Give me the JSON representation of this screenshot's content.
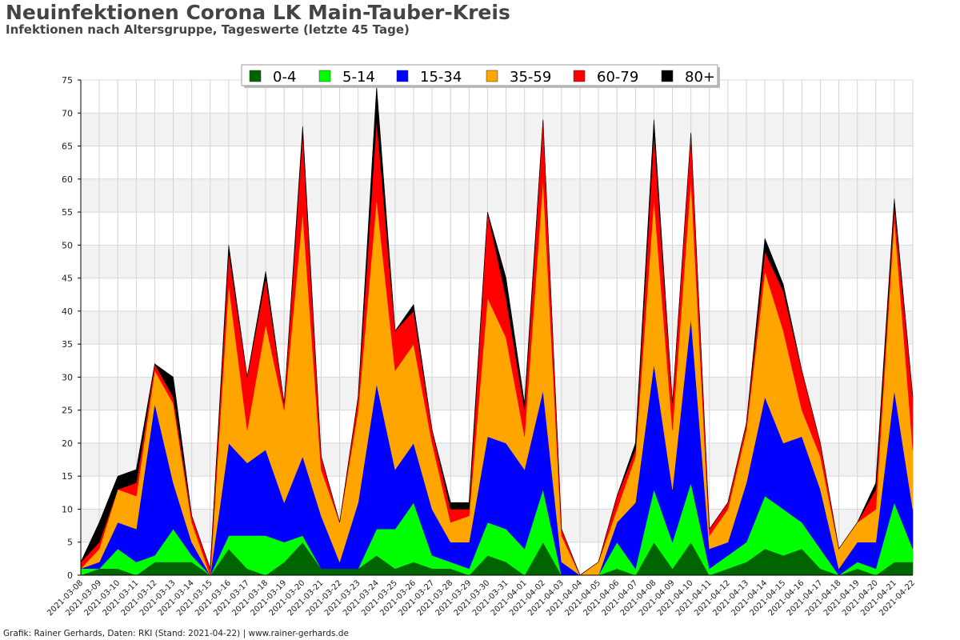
{
  "title": "Neuinfektionen Corona LK Main-Tauber-Kreis",
  "subtitle": "Infektionen nach Altersgruppe, Tageswerte (letzte 45 Tage)",
  "footer": "Grafik: Rainer Gerhards, Daten: RKI (Stand: 2021-04-22) | www.rainer-gerhards.de",
  "chart_data": {
    "type": "area",
    "stacked": true,
    "x": [
      "2021-03-08",
      "2021-03-09",
      "2021-03-10",
      "2021-03-11",
      "2021-03-12",
      "2021-03-13",
      "2021-03-14",
      "2021-03-15",
      "2021-03-16",
      "2021-03-17",
      "2021-03-18",
      "2021-03-19",
      "2021-03-20",
      "2021-03-21",
      "2021-03-22",
      "2021-03-23",
      "2021-03-24",
      "2021-03-25",
      "2021-03-26",
      "2021-03-27",
      "2021-03-28",
      "2021-03-29",
      "2021-03-30",
      "2021-03-31",
      "2021-04-01",
      "2021-04-02",
      "2021-04-03",
      "2021-04-04",
      "2021-04-05",
      "2021-04-06",
      "2021-04-07",
      "2021-04-08",
      "2021-04-09",
      "2021-04-10",
      "2021-04-11",
      "2021-04-12",
      "2021-04-13",
      "2021-04-14",
      "2021-04-15",
      "2021-04-16",
      "2021-04-17",
      "2021-04-18",
      "2021-04-19",
      "2021-04-20",
      "2021-04-21",
      "2021-04-22"
    ],
    "x_tick_labels": [
      "2021-03-08",
      "2021-03-09",
      "2021-03-10",
      "2021-03-11",
      "2021-03-12",
      "2021-03-13",
      "2021-03-14",
      "2021-03-15",
      "2021-03-16",
      "2021-03-17",
      "2021-03-18",
      "2021-03-19",
      "2021-03-20",
      "2021-03-21",
      "2021-03-22",
      "2021-03-23",
      "2021-03-24",
      "2021-03-25",
      "2021-03-26",
      "2021-03-27",
      "2021-03-28",
      "2021-03-29",
      "2021-03-30",
      "2021-03-31",
      "2021-04-01",
      "2021-04-02",
      "2021-04-03",
      "2021-04-04",
      "2021-04-05",
      "2021-04-06",
      "2021-04-07",
      "2021-04-08",
      "2021-04-09",
      "2021-04-10",
      "2021-04-11",
      "2021-04-12",
      "2021-04-13",
      "2021-04-14",
      "2021-04-15",
      "2021-04-16",
      "2021-04-17",
      "2021-04-18",
      "2021-04-19",
      "2021-04-20",
      "2021-04-21",
      "2021-04-22"
    ],
    "ylim": [
      0,
      75
    ],
    "y_ticks": [
      0,
      5,
      10,
      15,
      20,
      25,
      30,
      35,
      40,
      45,
      50,
      55,
      60,
      65,
      70,
      75
    ],
    "grid": true,
    "legend_position": "top-center",
    "series": [
      {
        "name": "0-4",
        "color": "#006400",
        "values": [
          0,
          1,
          1,
          0,
          2,
          2,
          2,
          0,
          4,
          1,
          0,
          2,
          5,
          1,
          1,
          1,
          3,
          1,
          2,
          1,
          1,
          0,
          3,
          2,
          0,
          5,
          0,
          0,
          0,
          1,
          0,
          5,
          1,
          5,
          0,
          1,
          2,
          4,
          3,
          4,
          1,
          0,
          1,
          0,
          2,
          2
        ]
      },
      {
        "name": "5-14",
        "color": "#00ff00",
        "values": [
          1,
          0,
          3,
          2,
          1,
          5,
          1,
          0,
          2,
          5,
          6,
          3,
          1,
          0,
          0,
          0,
          4,
          6,
          9,
          2,
          1,
          1,
          5,
          5,
          4,
          8,
          0,
          0,
          0,
          4,
          1,
          8,
          4,
          9,
          1,
          2,
          3,
          8,
          7,
          4,
          3,
          0,
          1,
          1,
          9,
          2
        ]
      },
      {
        "name": "15-34",
        "color": "#0000ff",
        "values": [
          0,
          1,
          4,
          5,
          23,
          7,
          2,
          0,
          14,
          11,
          13,
          6,
          12,
          8,
          1,
          10,
          22,
          9,
          9,
          7,
          3,
          4,
          13,
          13,
          12,
          15,
          2,
          0,
          0,
          3,
          10,
          19,
          8,
          25,
          3,
          2,
          9,
          15,
          10,
          13,
          9,
          1,
          3,
          4,
          17,
          6
        ]
      },
      {
        "name": "35-59",
        "color": "#ffa500",
        "values": [
          0,
          2,
          5,
          5,
          5,
          12,
          3,
          0,
          24,
          5,
          19,
          14,
          37,
          7,
          6,
          14,
          28,
          15,
          15,
          10,
          3,
          4,
          21,
          16,
          5,
          32,
          4,
          0,
          2,
          2,
          7,
          25,
          9,
          21,
          2,
          5,
          8,
          19,
          17,
          4,
          5,
          3,
          3,
          5,
          26,
          9
        ]
      },
      {
        "name": "60-79",
        "color": "#ff0000",
        "values": [
          1,
          1,
          0,
          2,
          1,
          1,
          1,
          1,
          5,
          8,
          7,
          1,
          12,
          2,
          0,
          2,
          12,
          6,
          5,
          2,
          2,
          1,
          13,
          6,
          4,
          9,
          1,
          0,
          0,
          2,
          1,
          10,
          4,
          7,
          1,
          1,
          1,
          3,
          6,
          6,
          2,
          0,
          0,
          3,
          2,
          8
        ]
      },
      {
        "name": "80+",
        "color": "#000000",
        "values": [
          0,
          3,
          2,
          2,
          0,
          3,
          0,
          0,
          1,
          0,
          1,
          0,
          1,
          0,
          0,
          0,
          5,
          0,
          1,
          0,
          1,
          1,
          0,
          3,
          1,
          0,
          0,
          0,
          0,
          0,
          1,
          2,
          0,
          0,
          0,
          0,
          0,
          2,
          1,
          0,
          0,
          0,
          0,
          1,
          1,
          0
        ]
      }
    ]
  }
}
